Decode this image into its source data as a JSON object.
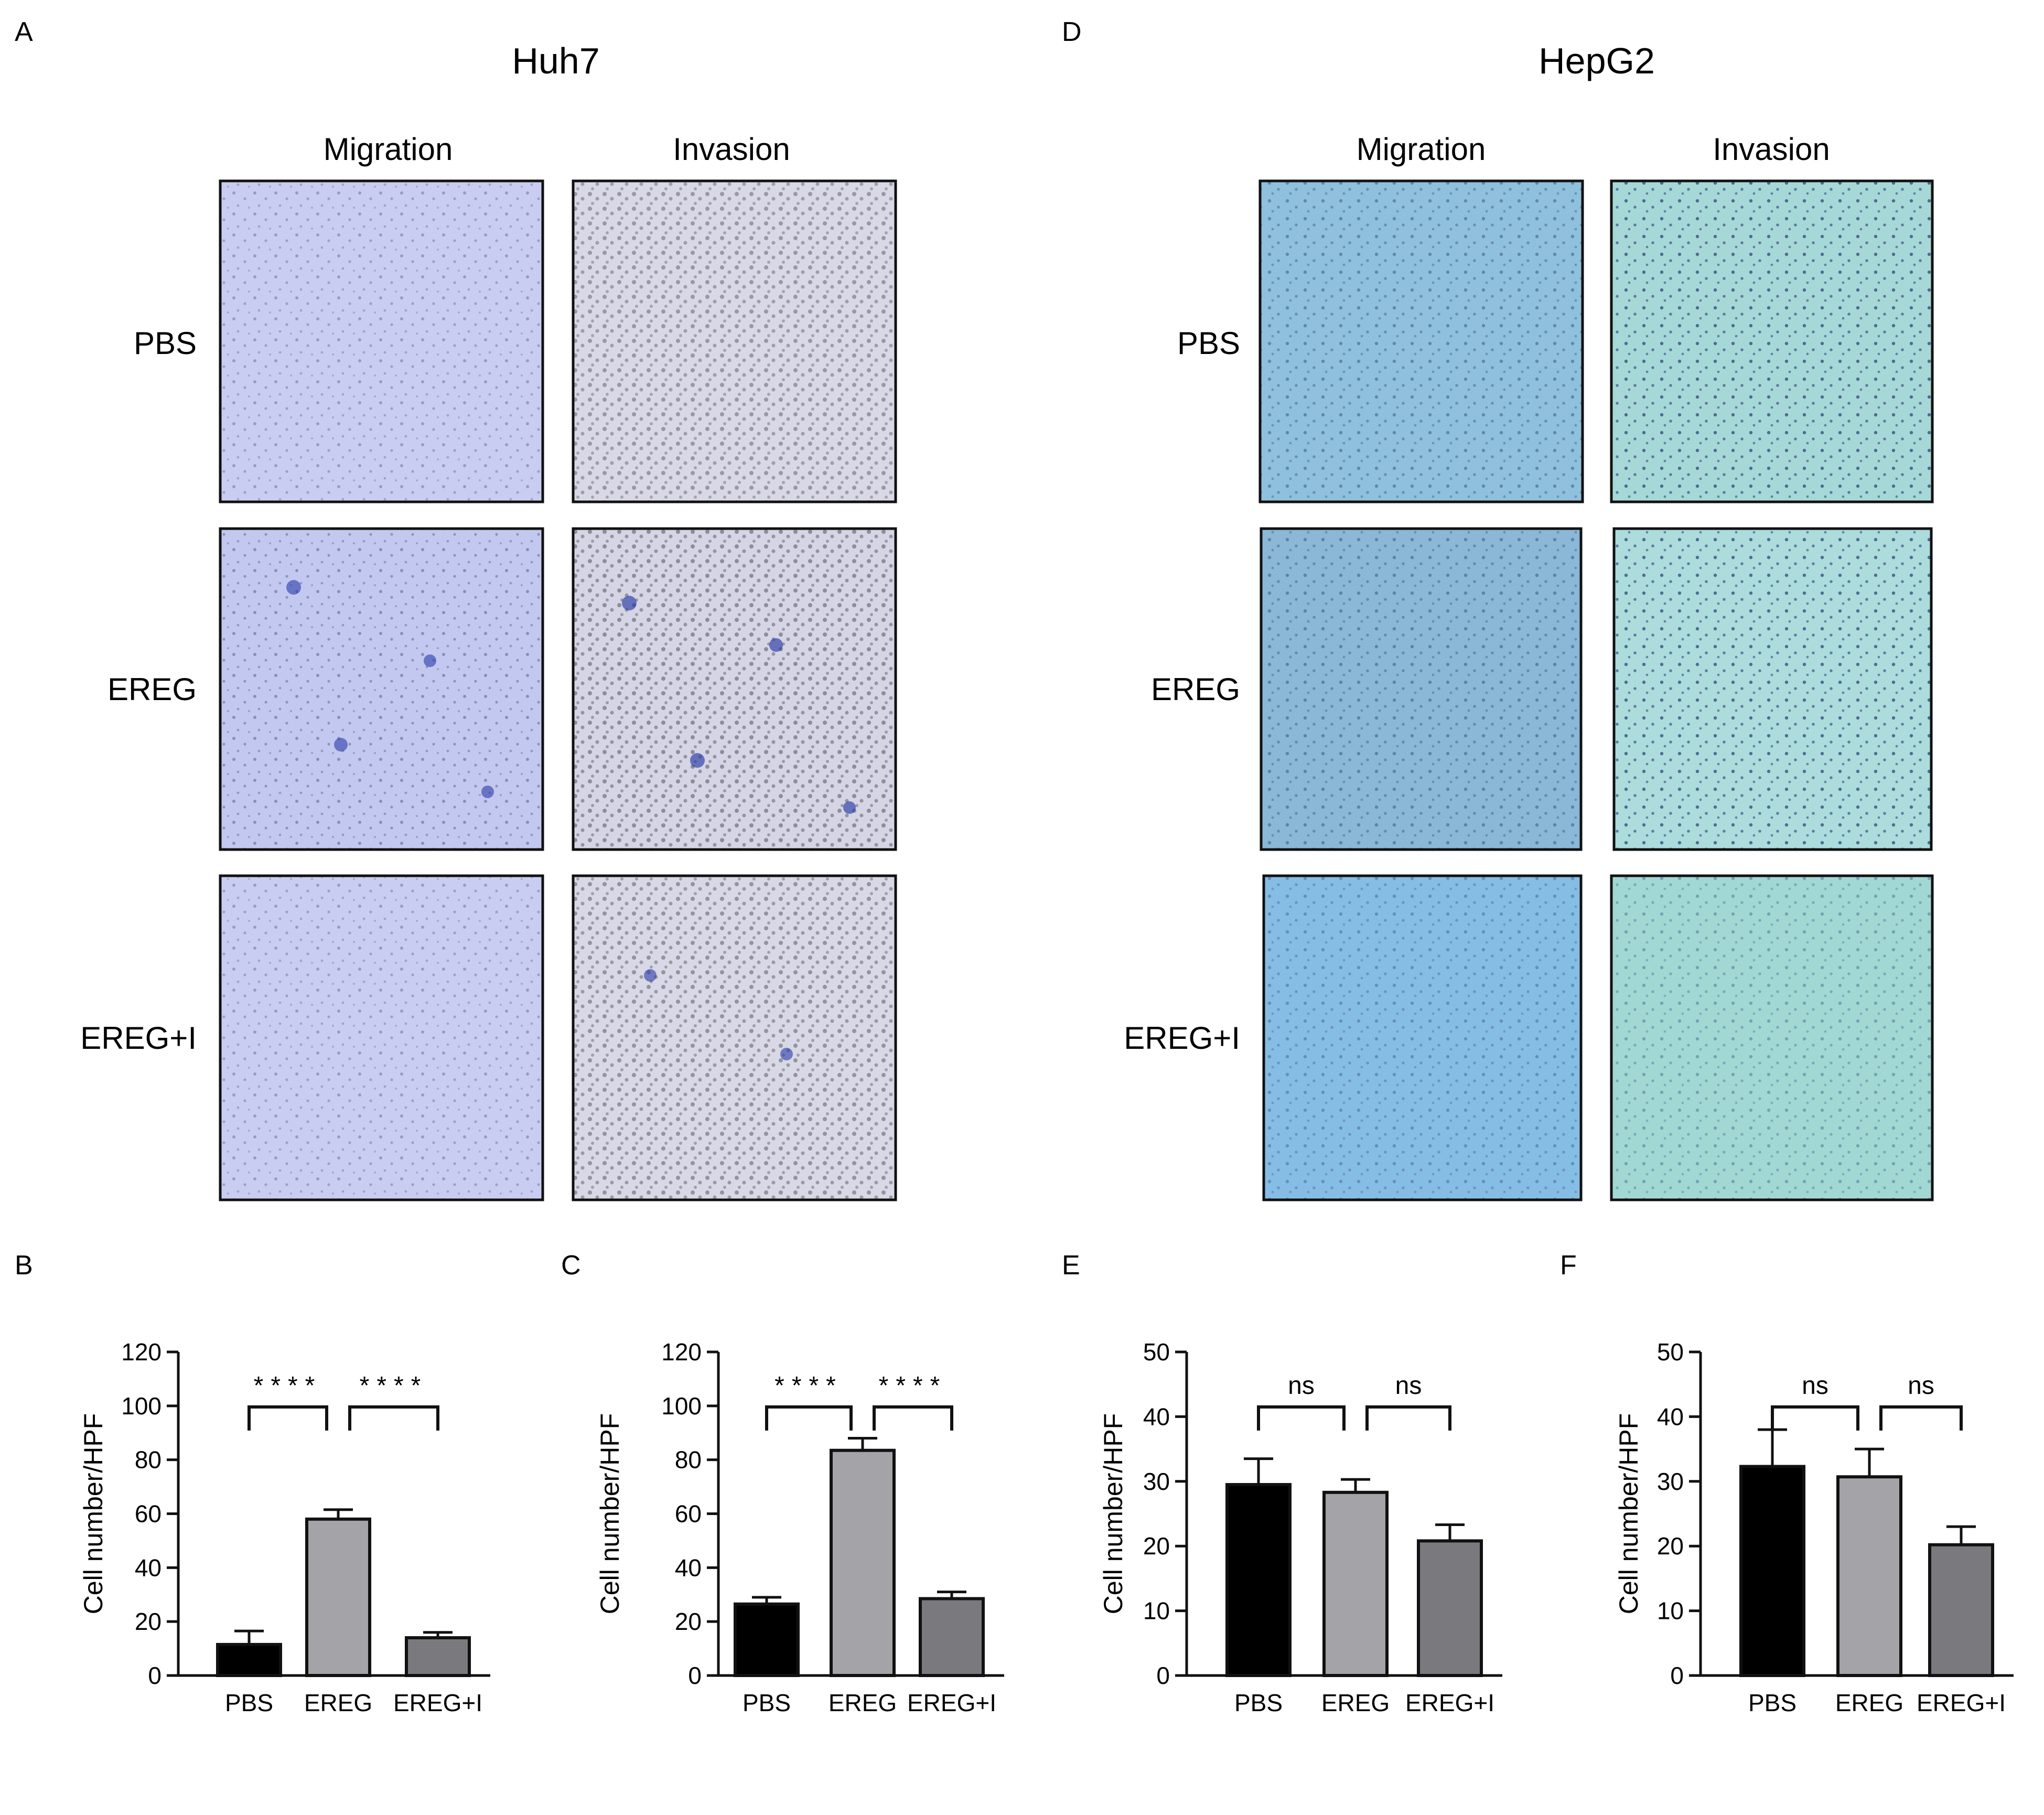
{
  "panels": {
    "A": {
      "letter": "A",
      "title": "Huh7",
      "columns": [
        "Migration",
        "Invasion"
      ],
      "rows": [
        "PBS",
        "EREG",
        "EREG+I"
      ]
    },
    "D": {
      "letter": "D",
      "title": "HepG2",
      "columns": [
        "Migration",
        "Invasion"
      ],
      "rows": [
        "PBS",
        "EREG",
        "EREG+I"
      ]
    }
  },
  "micrograph_colors": {
    "huh7_migration": "#c9cdf2",
    "huh7_invasion": "#d8d8e6",
    "hepg2_migration": "#8fc0dc",
    "hepg2_invasion": "#a7d8d8",
    "stain": "#2a3aa8"
  },
  "chart_data": [
    {
      "letter": "B",
      "type": "bar",
      "categories": [
        "PBS",
        "EREG",
        "EREG+I"
      ],
      "values": [
        11.5,
        58,
        14
      ],
      "errors": [
        5,
        3.5,
        2
      ],
      "ylabel": "Cell number/HPF",
      "ylim": [
        0,
        120
      ],
      "yticks": [
        0,
        20,
        40,
        60,
        80,
        100,
        120
      ],
      "bar_colors": [
        "#000000",
        "#a3a3a8",
        "#7a7a7e"
      ],
      "significance": [
        {
          "from": 0,
          "to": 1,
          "label": "****"
        },
        {
          "from": 1,
          "to": 2,
          "label": "****"
        }
      ]
    },
    {
      "letter": "C",
      "type": "bar",
      "categories": [
        "PBS",
        "EREG",
        "EREG+I"
      ],
      "values": [
        26.5,
        83.5,
        28.5
      ],
      "errors": [
        2.5,
        4.5,
        2.5
      ],
      "ylabel": "Cell number/HPF",
      "ylim": [
        0,
        120
      ],
      "yticks": [
        0,
        20,
        40,
        60,
        80,
        100,
        120
      ],
      "bar_colors": [
        "#000000",
        "#a3a3a8",
        "#7a7a7e"
      ],
      "significance": [
        {
          "from": 0,
          "to": 1,
          "label": "****"
        },
        {
          "from": 1,
          "to": 2,
          "label": "****"
        }
      ]
    },
    {
      "letter": "E",
      "type": "bar",
      "categories": [
        "PBS",
        "EREG",
        "EREG+I"
      ],
      "values": [
        29.5,
        28.3,
        20.8
      ],
      "errors": [
        4,
        2,
        2.5
      ],
      "ylabel": "Cell number/HPF",
      "ylim": [
        0,
        50
      ],
      "yticks": [
        0,
        10,
        20,
        30,
        40,
        50
      ],
      "bar_colors": [
        "#000000",
        "#a3a3a8",
        "#7a7a7e"
      ],
      "significance": [
        {
          "from": 0,
          "to": 1,
          "label": "ns"
        },
        {
          "from": 1,
          "to": 2,
          "label": "ns"
        }
      ]
    },
    {
      "letter": "F",
      "type": "bar",
      "categories": [
        "PBS",
        "EREG",
        "EREG+I"
      ],
      "values": [
        32.3,
        30.7,
        20.2
      ],
      "errors": [
        5.7,
        4.3,
        2.8
      ],
      "ylabel": "Cell number/HPF",
      "ylim": [
        0,
        50
      ],
      "yticks": [
        0,
        10,
        20,
        30,
        40,
        50
      ],
      "bar_colors": [
        "#000000",
        "#a3a3a8",
        "#7a7a7e"
      ],
      "significance": [
        {
          "from": 0,
          "to": 1,
          "label": "ns"
        },
        {
          "from": 1,
          "to": 2,
          "label": "ns"
        }
      ]
    }
  ]
}
